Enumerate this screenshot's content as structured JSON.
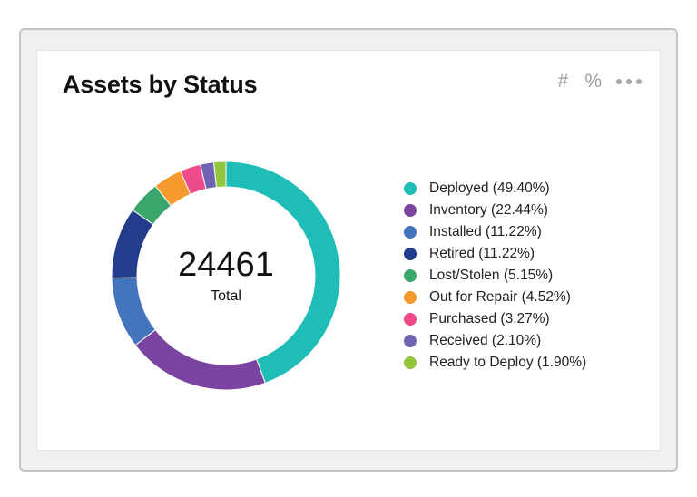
{
  "widget": {
    "title": "Assets by Status",
    "controls": {
      "count_label": "#",
      "percent_label": "%"
    }
  },
  "chart_data": {
    "type": "pie",
    "variant": "donut",
    "title": "Assets by Status",
    "center_value": "24461",
    "center_label": "Total",
    "legend_position": "right",
    "categories": [
      "Deployed",
      "Inventory",
      "Installed",
      "Retired",
      "Lost/Stolen",
      "Out for Repair",
      "Purchased",
      "Received",
      "Ready to Deploy"
    ],
    "display_labels": [
      "Deployed (49.40%)",
      "Inventory (22.44%)",
      "Installed (11.22%)",
      "Retired (11.22%)",
      "Lost/Stolen (5.15%)",
      "Out for Repair (4.52%)",
      "Purchased (3.27%)",
      "Received (2.10%)",
      "Ready to Deploy (1.90%)"
    ],
    "values": [
      49.4,
      22.44,
      11.22,
      11.22,
      5.15,
      4.52,
      3.27,
      2.1,
      1.9
    ],
    "colors": [
      "#1fbdb8",
      "#7b44a0",
      "#4474bc",
      "#233d8c",
      "#3aa66b",
      "#f59a2c",
      "#ef4a8c",
      "#6f65b0",
      "#92c63c"
    ]
  }
}
